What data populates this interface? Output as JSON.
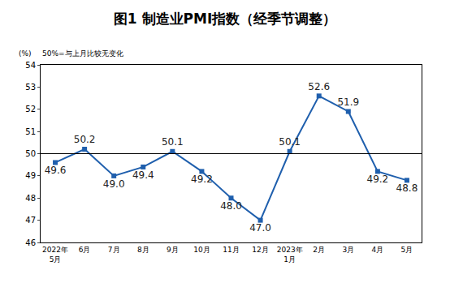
{
  "chart_data": {
    "type": "line",
    "title": "图1 制造业PMI指数（经季节调整）",
    "y_label": "(%)",
    "note": "50%=与上月比较无变化",
    "categories": [
      "2022年\n5月",
      "6月",
      "7月",
      "8月",
      "9月",
      "10月",
      "11月",
      "12月",
      "2023年\n1月",
      "2月",
      "3月",
      "4月",
      "5月"
    ],
    "values": [
      49.6,
      50.2,
      49.0,
      49.4,
      50.1,
      49.2,
      48.0,
      47.0,
      50.1,
      52.6,
      51.9,
      49.2,
      48.8
    ],
    "value_labels": [
      "49.6",
      "50.2",
      "49.0",
      "49.4",
      "50.1",
      "49.2",
      "48.0",
      "47.0",
      "50.1",
      "52.6",
      "51.9",
      "49.2",
      "48.8"
    ],
    "color": "#1f5fad",
    "marker": "square",
    "reference_line": 50,
    "ylim": [
      46,
      54
    ],
    "yticks": [
      46,
      47,
      48,
      49,
      50,
      51,
      52,
      53,
      54
    ],
    "grid": false,
    "data_labels": true
  }
}
